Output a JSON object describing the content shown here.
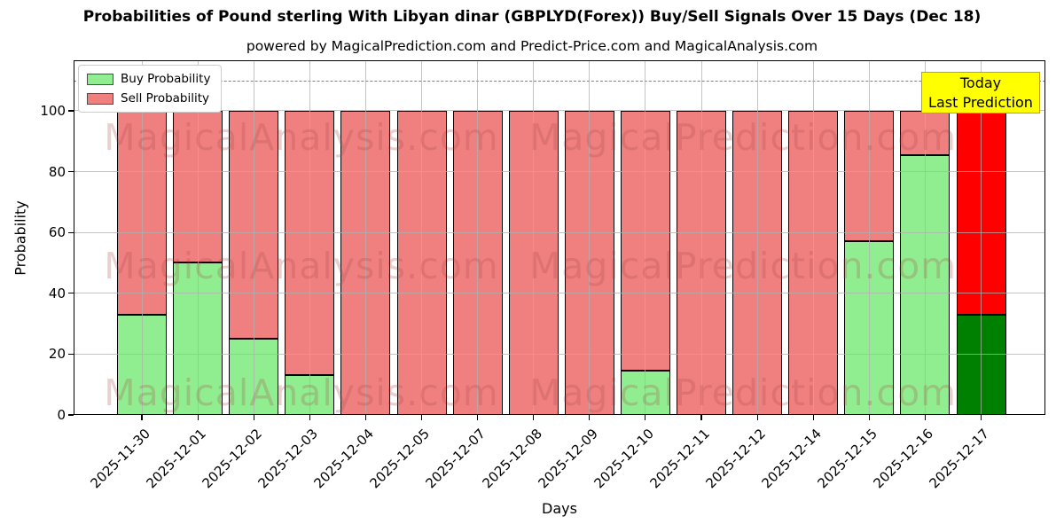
{
  "chart_data": {
    "type": "bar",
    "stacked": true,
    "title": "Probabilities of Pound sterling With Libyan dinar (GBPLYD(Forex)) Buy/Sell Signals Over 15 Days (Dec 18)",
    "subtitle": "powered by MagicalPrediction.com and Predict-Price.com and MagicalAnalysis.com",
    "xlabel": "Days",
    "ylabel": "Probability",
    "ylim": [
      0,
      116.6
    ],
    "yticks": [
      0,
      20,
      40,
      60,
      80,
      100
    ],
    "grid": true,
    "legend_position": "upper-left",
    "categories": [
      "2025-11-30",
      "2025-12-01",
      "2025-12-02",
      "2025-12-03",
      "2025-12-04",
      "2025-12-05",
      "2025-12-07",
      "2025-12-08",
      "2025-12-09",
      "2025-12-10",
      "2025-12-11",
      "2025-12-12",
      "2025-12-14",
      "2025-12-15",
      "2025-12-16",
      "2025-12-17"
    ],
    "series": [
      {
        "name": "Buy Probability",
        "color": "#90ee90",
        "today_color": "#008000",
        "values": [
          33,
          50,
          25,
          13,
          0,
          0,
          0,
          0,
          0,
          14.5,
          0,
          0,
          0,
          57,
          85.5,
          33
        ]
      },
      {
        "name": "Sell Probability",
        "color": "#f08080",
        "today_color": "#ff0000",
        "values": [
          67,
          50,
          75,
          87,
          100,
          100,
          100,
          100,
          100,
          85.5,
          100,
          100,
          100,
          43,
          14.5,
          67
        ]
      }
    ],
    "today_index": 15,
    "dashed_line_y": 110,
    "annotation": {
      "line1": "Today",
      "line2": "Last Prediction",
      "bg": "#ffff00",
      "border": "#bfa700"
    },
    "watermark_left": "MagicalAnalysis.com",
    "watermark_right": "MagicalPrediction.com"
  }
}
